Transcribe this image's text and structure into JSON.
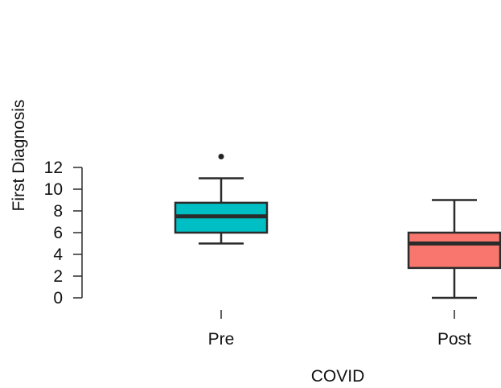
{
  "chart_data": {
    "type": "box",
    "xlabel": "COVID",
    "ylabel": "First Diagnosis",
    "ylim": [
      0,
      12
    ],
    "yticks": [
      0,
      2,
      4,
      6,
      8,
      10,
      12
    ],
    "categories": [
      "Pre",
      "Post"
    ],
    "boxes": [
      {
        "category": "Pre",
        "min": 5,
        "q1": 6,
        "median": 7.5,
        "q3": 8.75,
        "max": 11,
        "outliers": [
          13
        ],
        "color": "#00BFC4"
      },
      {
        "category": "Post",
        "min": 0,
        "q1": 2.75,
        "median": 5,
        "q3": 6,
        "max": 9,
        "outliers": [],
        "color": "#F8766D"
      }
    ],
    "grid": false,
    "legend": "none"
  }
}
